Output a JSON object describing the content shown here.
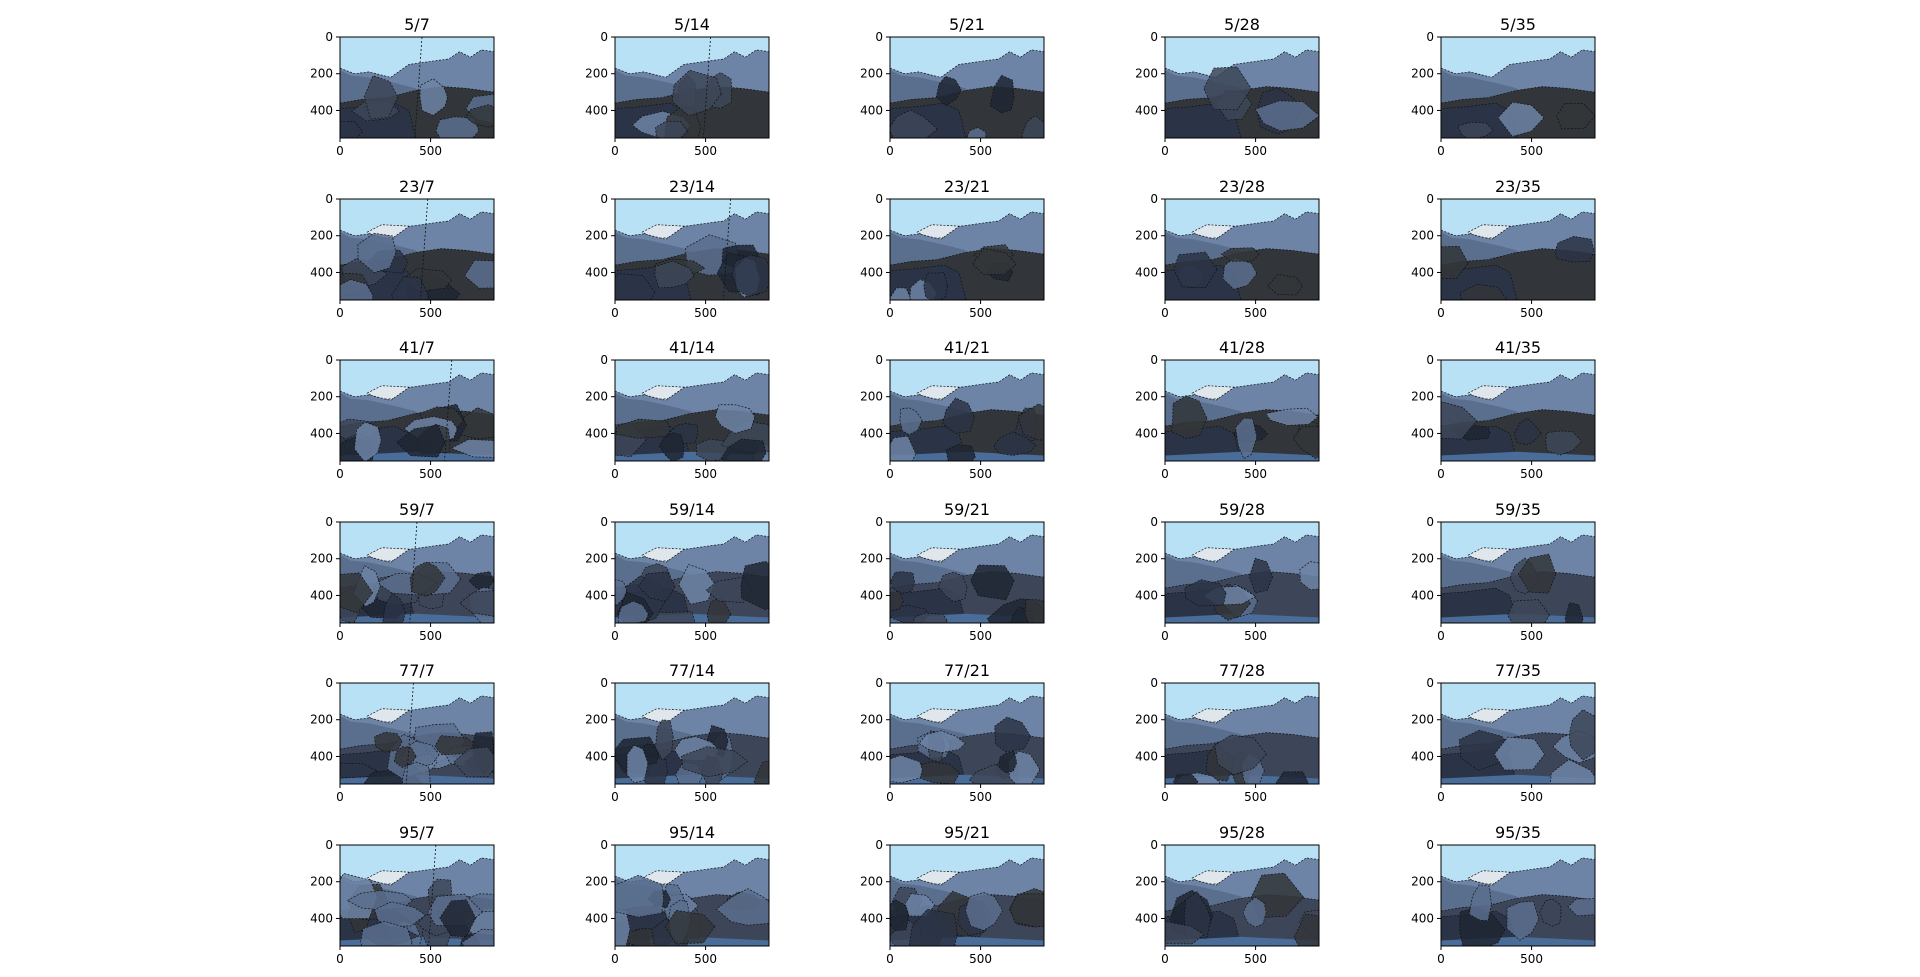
{
  "chart_data": {
    "type": "image-grid",
    "rows": 6,
    "cols": 5,
    "panel_titles": [
      "5/7",
      "5/14",
      "5/21",
      "5/28",
      "5/35",
      "23/7",
      "23/14",
      "23/21",
      "23/28",
      "23/35",
      "41/7",
      "41/14",
      "41/21",
      "41/28",
      "41/35",
      "59/7",
      "59/14",
      "59/21",
      "59/28",
      "59/35",
      "77/7",
      "77/14",
      "77/21",
      "77/28",
      "77/35",
      "95/7",
      "95/14",
      "95/21",
      "95/28",
      "95/35"
    ],
    "xticks": [
      0,
      500
    ],
    "yticks": [
      0,
      200,
      400
    ],
    "xlim": [
      0,
      850
    ],
    "ylim": [
      550,
      0
    ],
    "grid": false,
    "colors": {
      "sky": "#b9e1f5",
      "snow": "#dfe6ec",
      "mountain_far": "#6d84a6",
      "mountain_left": "#5a6f8e",
      "hill_mid": "#3d4658",
      "ground_left": "#2b3446",
      "ground_right": "#32363a",
      "ground_dark": "#1e2633",
      "water": "#4a6c98",
      "boundary": "#111111"
    }
  }
}
